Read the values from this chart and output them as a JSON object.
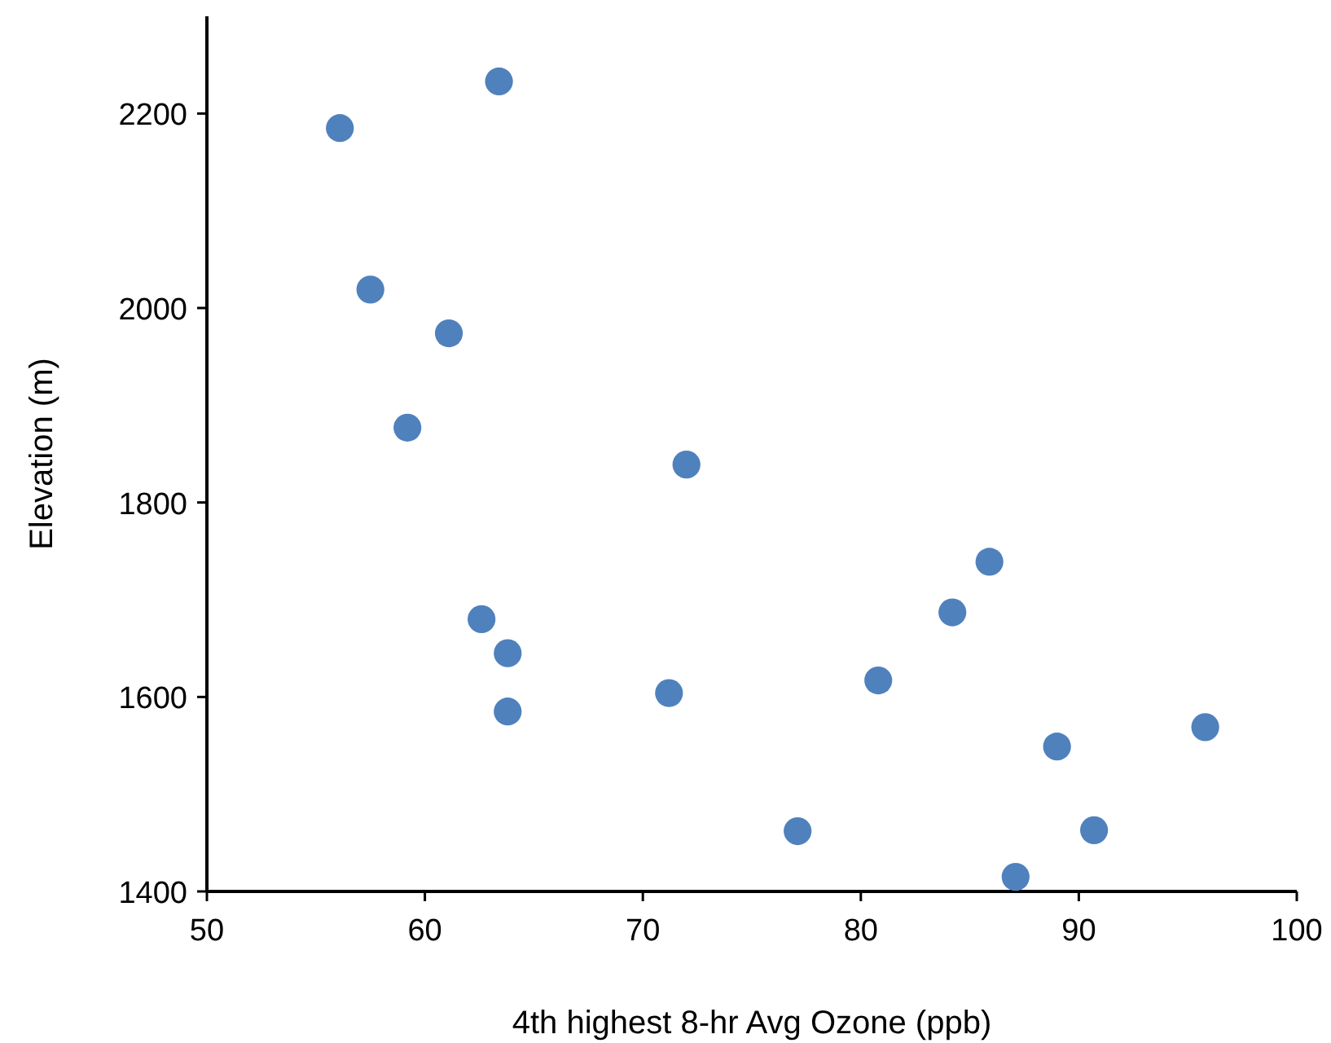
{
  "chart_data": {
    "type": "scatter",
    "xlabel": "4th highest 8-hr Avg Ozone (ppb)",
    "ylabel": "Elevation (m)",
    "x": [
      56.1,
      63.4,
      57.5,
      61.1,
      59.2,
      72.0,
      85.9,
      84.2,
      62.6,
      63.8,
      63.8,
      71.2,
      80.8,
      95.8,
      89.0,
      77.1,
      90.7,
      87.1
    ],
    "values": [
      2185,
      2233,
      2019,
      1974,
      1877,
      1839,
      1739,
      1687,
      1680,
      1645,
      1585,
      1604,
      1617,
      1569,
      1549,
      1462,
      1463,
      1415
    ],
    "color": "#4f81bd",
    "marker": "circle",
    "xlim": [
      50,
      100
    ],
    "xticks": [
      50,
      60,
      70,
      80,
      90,
      100
    ],
    "ylim": [
      1400,
      2300
    ],
    "yticks": [
      1400,
      1600,
      1800,
      2000,
      2200
    ]
  }
}
